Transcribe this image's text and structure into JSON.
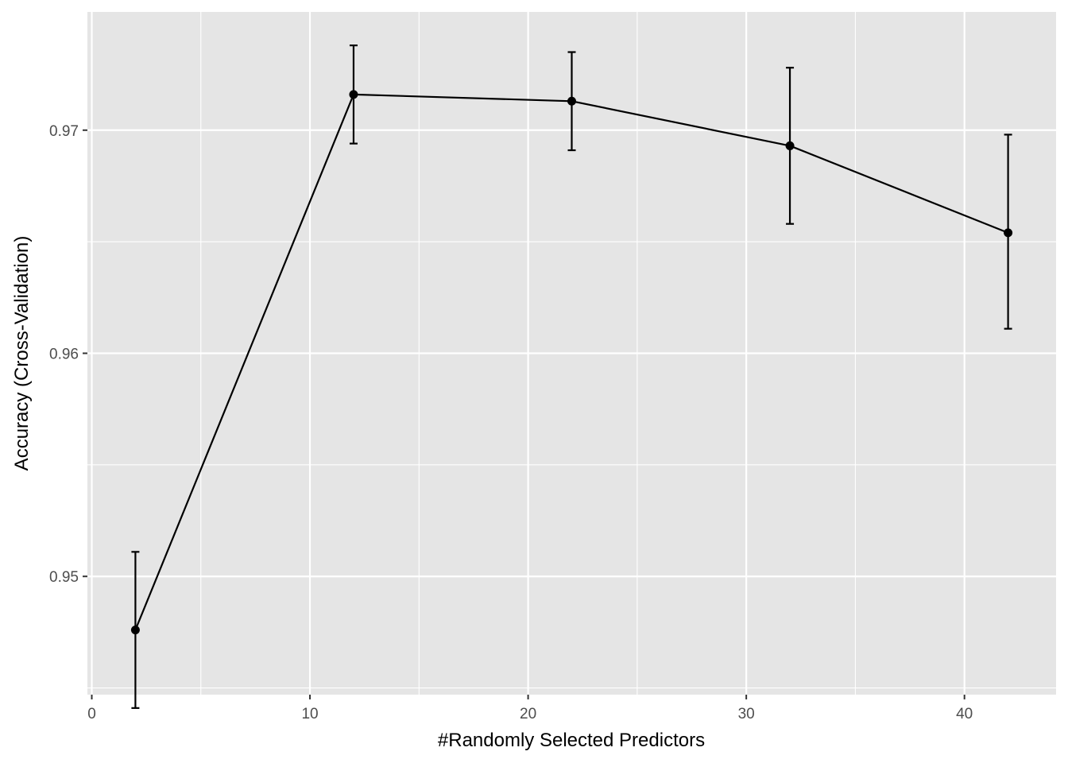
{
  "chart_data": {
    "type": "line",
    "title": "",
    "xlabel": "#Randomly Selected Predictors",
    "ylabel": "Accuracy (Cross-Validation)",
    "x": [
      2,
      12,
      22,
      32,
      42
    ],
    "series": [
      {
        "values": [
          0.9476,
          0.9716,
          0.9713,
          0.9693,
          0.9654
        ],
        "error_low": [
          0.9441,
          0.9694,
          0.9691,
          0.9658,
          0.9611
        ],
        "error_high": [
          0.9511,
          0.9738,
          0.9735,
          0.9728,
          0.9698
        ]
      }
    ],
    "xlim": [
      -0.2,
      44.2
    ],
    "ylim": [
      0.9447,
      0.9753
    ],
    "x_ticks": [
      0,
      10,
      20,
      30,
      40
    ],
    "x_tick_labels": [
      "0",
      "10",
      "20",
      "30",
      "40"
    ],
    "x_minor_ticks": [
      5,
      15,
      25,
      35
    ],
    "y_ticks": [
      0.95,
      0.96,
      0.97
    ],
    "y_tick_labels": [
      "0.95",
      "0.96",
      "0.97"
    ],
    "y_minor_ticks": [
      0.945,
      0.955,
      0.965
    ],
    "grid": true,
    "legend": "none",
    "colors": {
      "panel": "#e5e5e5",
      "grid": "#ffffff",
      "series": "#000000",
      "tick_text": "#4d4d4d"
    }
  }
}
